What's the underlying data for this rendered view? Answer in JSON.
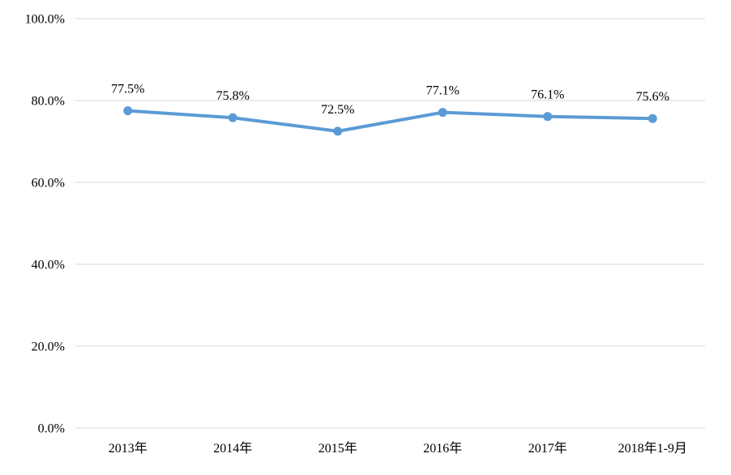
{
  "chart_data": {
    "type": "line",
    "title": "",
    "xlabel": "",
    "ylabel": "",
    "categories": [
      "2013年",
      "2014年",
      "2015年",
      "2016年",
      "2017年",
      "2018年1-9月"
    ],
    "series": [
      {
        "name": "percentage",
        "values": [
          77.5,
          75.8,
          72.5,
          77.1,
          76.1,
          75.6
        ],
        "data_labels": [
          "77.5%",
          "75.8%",
          "72.5%",
          "77.1%",
          "76.1%",
          "75.6%"
        ]
      }
    ],
    "y_ticks": [
      {
        "value": 0,
        "label": "0.0%"
      },
      {
        "value": 20,
        "label": "20.0%"
      },
      {
        "value": 40,
        "label": "40.0%"
      },
      {
        "value": 60,
        "label": "60.0%"
      },
      {
        "value": 80,
        "label": "80.0%"
      },
      {
        "value": 100,
        "label": "100.0%"
      }
    ],
    "ylim": [
      0,
      100
    ],
    "grid": true,
    "legend_position": "none",
    "colors": {
      "line": "#5B9BD5",
      "marker": "#5B9BD5",
      "gridline": "#D9D9D9",
      "text": "#000000",
      "background": "#FFFFFF"
    }
  }
}
